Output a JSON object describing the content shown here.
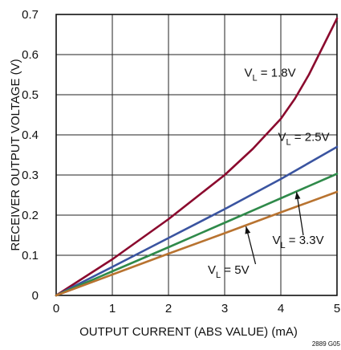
{
  "chart_data": {
    "type": "line",
    "xlabel": "OUTPUT CURRENT (ABS VALUE) (mA)",
    "ylabel": "RECEIVER OUTPUT VOLTAGE (V)",
    "xlim": [
      0,
      5
    ],
    "ylim": [
      0,
      0.7
    ],
    "x_ticks": [
      "0",
      "1",
      "2",
      "3",
      "4",
      "5"
    ],
    "y_ticks": [
      "0",
      "0.1",
      "0.2",
      "0.3",
      "0.4",
      "0.5",
      "0.6",
      "0.7"
    ],
    "grid": true,
    "figure_id": "2889 G05",
    "series": [
      {
        "label_main": "V",
        "label_sub": "L",
        "label_rest": " = 1.8V",
        "color": "#8b0a2e",
        "x": [
          0,
          0.5,
          1,
          1.5,
          2,
          2.5,
          3,
          3.5,
          4,
          4.25,
          4.5,
          4.75,
          5
        ],
        "y": [
          0,
          0.045,
          0.09,
          0.14,
          0.19,
          0.245,
          0.3,
          0.365,
          0.44,
          0.49,
          0.55,
          0.62,
          0.69
        ]
      },
      {
        "label_main": "V",
        "label_sub": "L",
        "label_rest": " = 2.5V",
        "color": "#3a54a0",
        "x": [
          0,
          1,
          2,
          3,
          4,
          5
        ],
        "y": [
          0,
          0.071,
          0.143,
          0.215,
          0.29,
          0.37
        ]
      },
      {
        "label_main": "V",
        "label_sub": "L",
        "label_rest": " = 3.3V",
        "color": "#2f8a4a",
        "x": [
          0,
          1,
          2,
          3,
          4,
          5
        ],
        "y": [
          0,
          0.06,
          0.12,
          0.181,
          0.242,
          0.303
        ]
      },
      {
        "label_main": "V",
        "label_sub": "L",
        "label_rest": " = 5V",
        "color": "#b87330",
        "x": [
          0,
          1,
          2,
          3,
          4,
          5
        ],
        "y": [
          0,
          0.052,
          0.104,
          0.155,
          0.207,
          0.258
        ]
      }
    ]
  }
}
